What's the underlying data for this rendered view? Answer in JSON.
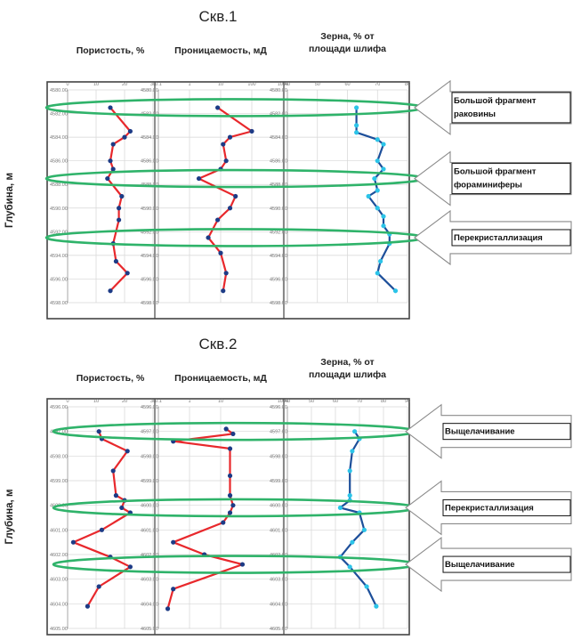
{
  "chart_data": [
    {
      "type": "line",
      "title": "Скв.1",
      "ylabel": "Глубина, м",
      "y_ticks": [
        "4580.00",
        "4582.00",
        "4584.00",
        "4586.00",
        "4588.00",
        "4590.00",
        "4592.00",
        "4594.00",
        "4596.00",
        "4598.00"
      ],
      "ylim": [
        4580,
        4598
      ],
      "tracks": [
        {
          "header": [
            "Пористость, %"
          ],
          "x_ticks": [
            "0",
            "10",
            "20",
            "30"
          ],
          "xlim": [
            0,
            30
          ],
          "line_color": "#e8282c",
          "marker_color": "#1d3b86",
          "points": [
            [
              15,
              4581.5
            ],
            [
              22,
              4583.5
            ],
            [
              20,
              4584
            ],
            [
              16,
              4584.6
            ],
            [
              15,
              4586
            ],
            [
              16,
              4586.7
            ],
            [
              14,
              4587.5
            ],
            [
              19,
              4589
            ],
            [
              18,
              4590
            ],
            [
              18,
              4591
            ],
            [
              16,
              4593
            ],
            [
              17,
              4594.5
            ],
            [
              21,
              4595.5
            ],
            [
              15,
              4597
            ]
          ]
        },
        {
          "header": [
            "Проницаемость, мД"
          ],
          "x_ticks": [
            "0.1",
            "1",
            "10",
            "100",
            "1000"
          ],
          "xlim": [
            0.1,
            1000
          ],
          "log_x": true,
          "line_color": "#e8282c",
          "marker_color": "#1d3b86",
          "points": [
            [
              8,
              4581.5
            ],
            [
              100,
              4583.5
            ],
            [
              20,
              4584
            ],
            [
              12,
              4584.6
            ],
            [
              15,
              4586
            ],
            [
              10,
              4586.7
            ],
            [
              2,
              4587.5
            ],
            [
              30,
              4589
            ],
            [
              20,
              4590
            ],
            [
              8,
              4591
            ],
            [
              4,
              4592.5
            ],
            [
              10,
              4593.8
            ],
            [
              15,
              4595.5
            ],
            [
              12,
              4597
            ]
          ]
        },
        {
          "header": [
            "Зерна, % от",
            "площади шлифа"
          ],
          "x_ticks": [
            "40",
            "50",
            "60",
            "70",
            "80"
          ],
          "xlim": [
            40,
            80
          ],
          "line_color": "#1d4f9a",
          "marker_color": "#2cc4e8",
          "points": [
            [
              63,
              4581.5
            ],
            [
              63,
              4583
            ],
            [
              63,
              4583.6
            ],
            [
              70,
              4584.2
            ],
            [
              72,
              4584.6
            ],
            [
              70,
              4586
            ],
            [
              72,
              4586.7
            ],
            [
              69,
              4587.5
            ],
            [
              70,
              4588.5
            ],
            [
              67,
              4589
            ],
            [
              70,
              4590
            ],
            [
              72,
              4590.7
            ],
            [
              72,
              4591.5
            ],
            [
              74,
              4592.2
            ],
            [
              74,
              4593
            ],
            [
              71,
              4594.5
            ],
            [
              70,
              4595.5
            ],
            [
              76,
              4597
            ]
          ]
        }
      ],
      "annotations": [
        {
          "text": [
            "Большой фрагмент",
            "раковины"
          ],
          "depth": 4581.5
        },
        {
          "text": [
            "Большой фрагмент",
            "фораминиферы"
          ],
          "depth": 4587.5
        },
        {
          "text": [
            "Перекристаллизация"
          ],
          "depth": 4592.5
        }
      ]
    },
    {
      "type": "line",
      "title": "Скв.2",
      "ylabel": "Глубина, м",
      "y_ticks": [
        "4596.00",
        "4597.00",
        "4598.00",
        "4599.00",
        "4600.00",
        "4601.00",
        "4602.00",
        "4603.00",
        "4604.00",
        "4605.00"
      ],
      "ylim": [
        4596,
        4605
      ],
      "tracks": [
        {
          "header": [
            "Пористость, %"
          ],
          "x_ticks": [
            "0",
            "10",
            "20",
            "30"
          ],
          "xlim": [
            0,
            30
          ],
          "line_color": "#e8282c",
          "marker_color": "#1d3b86",
          "points": [
            [
              11,
              4597
            ],
            [
              12,
              4597.3
            ],
            [
              21,
              4597.8
            ],
            [
              16,
              4598.6
            ],
            [
              17,
              4599.6
            ],
            [
              20,
              4599.8
            ],
            [
              19,
              4600.1
            ],
            [
              22,
              4600.3
            ],
            [
              12,
              4601
            ],
            [
              2,
              4601.5
            ],
            [
              15,
              4602.1
            ],
            [
              22,
              4602.5
            ],
            [
              11,
              4603.3
            ],
            [
              7,
              4604.1
            ]
          ]
        },
        {
          "header": [
            "Проницаемость, мД"
          ],
          "x_ticks": [
            "0.1",
            "1",
            "10",
            "1000"
          ],
          "xlim": [
            0.1,
            1000
          ],
          "log_x": true,
          "line_color": "#e8282c",
          "marker_color": "#1d3b86",
          "points": [
            [
              15,
              4596.9
            ],
            [
              25,
              4597.1
            ],
            [
              0.3,
              4597.4
            ],
            [
              20,
              4597.7
            ],
            [
              20,
              4598.8
            ],
            [
              20,
              4599.6
            ],
            [
              25,
              4600
            ],
            [
              20,
              4600.3
            ],
            [
              12,
              4600.7
            ],
            [
              0.3,
              4601.5
            ],
            [
              3,
              4602
            ],
            [
              50,
              4602.4
            ],
            [
              0.3,
              4603.4
            ],
            [
              0.2,
              4604.2
            ]
          ]
        },
        {
          "header": [
            "Зерна, % от",
            "площади шлифа"
          ],
          "x_ticks": [
            "40",
            "50",
            "60",
            "70",
            "80",
            "90"
          ],
          "xlim": [
            40,
            90
          ],
          "line_color": "#1d4f9a",
          "marker_color": "#2cc4e8",
          "points": [
            [
              68,
              4597
            ],
            [
              70,
              4597.3
            ],
            [
              67,
              4597.8
            ],
            [
              66,
              4598.6
            ],
            [
              66,
              4599.6
            ],
            [
              66,
              4599.8
            ],
            [
              62,
              4600.1
            ],
            [
              70,
              4600.3
            ],
            [
              72,
              4601
            ],
            [
              67,
              4601.5
            ],
            [
              62,
              4602.1
            ],
            [
              66,
              4602.5
            ],
            [
              73,
              4603.3
            ],
            [
              77,
              4604.1
            ]
          ]
        }
      ],
      "annotations": [
        {
          "text": [
            "Выщелачивание"
          ],
          "depth": 4597
        },
        {
          "text": [
            "Перекристаллизация"
          ],
          "depth": 4600.1
        },
        {
          "text": [
            "Выщелачивание"
          ],
          "depth": 4602.4
        }
      ]
    }
  ]
}
